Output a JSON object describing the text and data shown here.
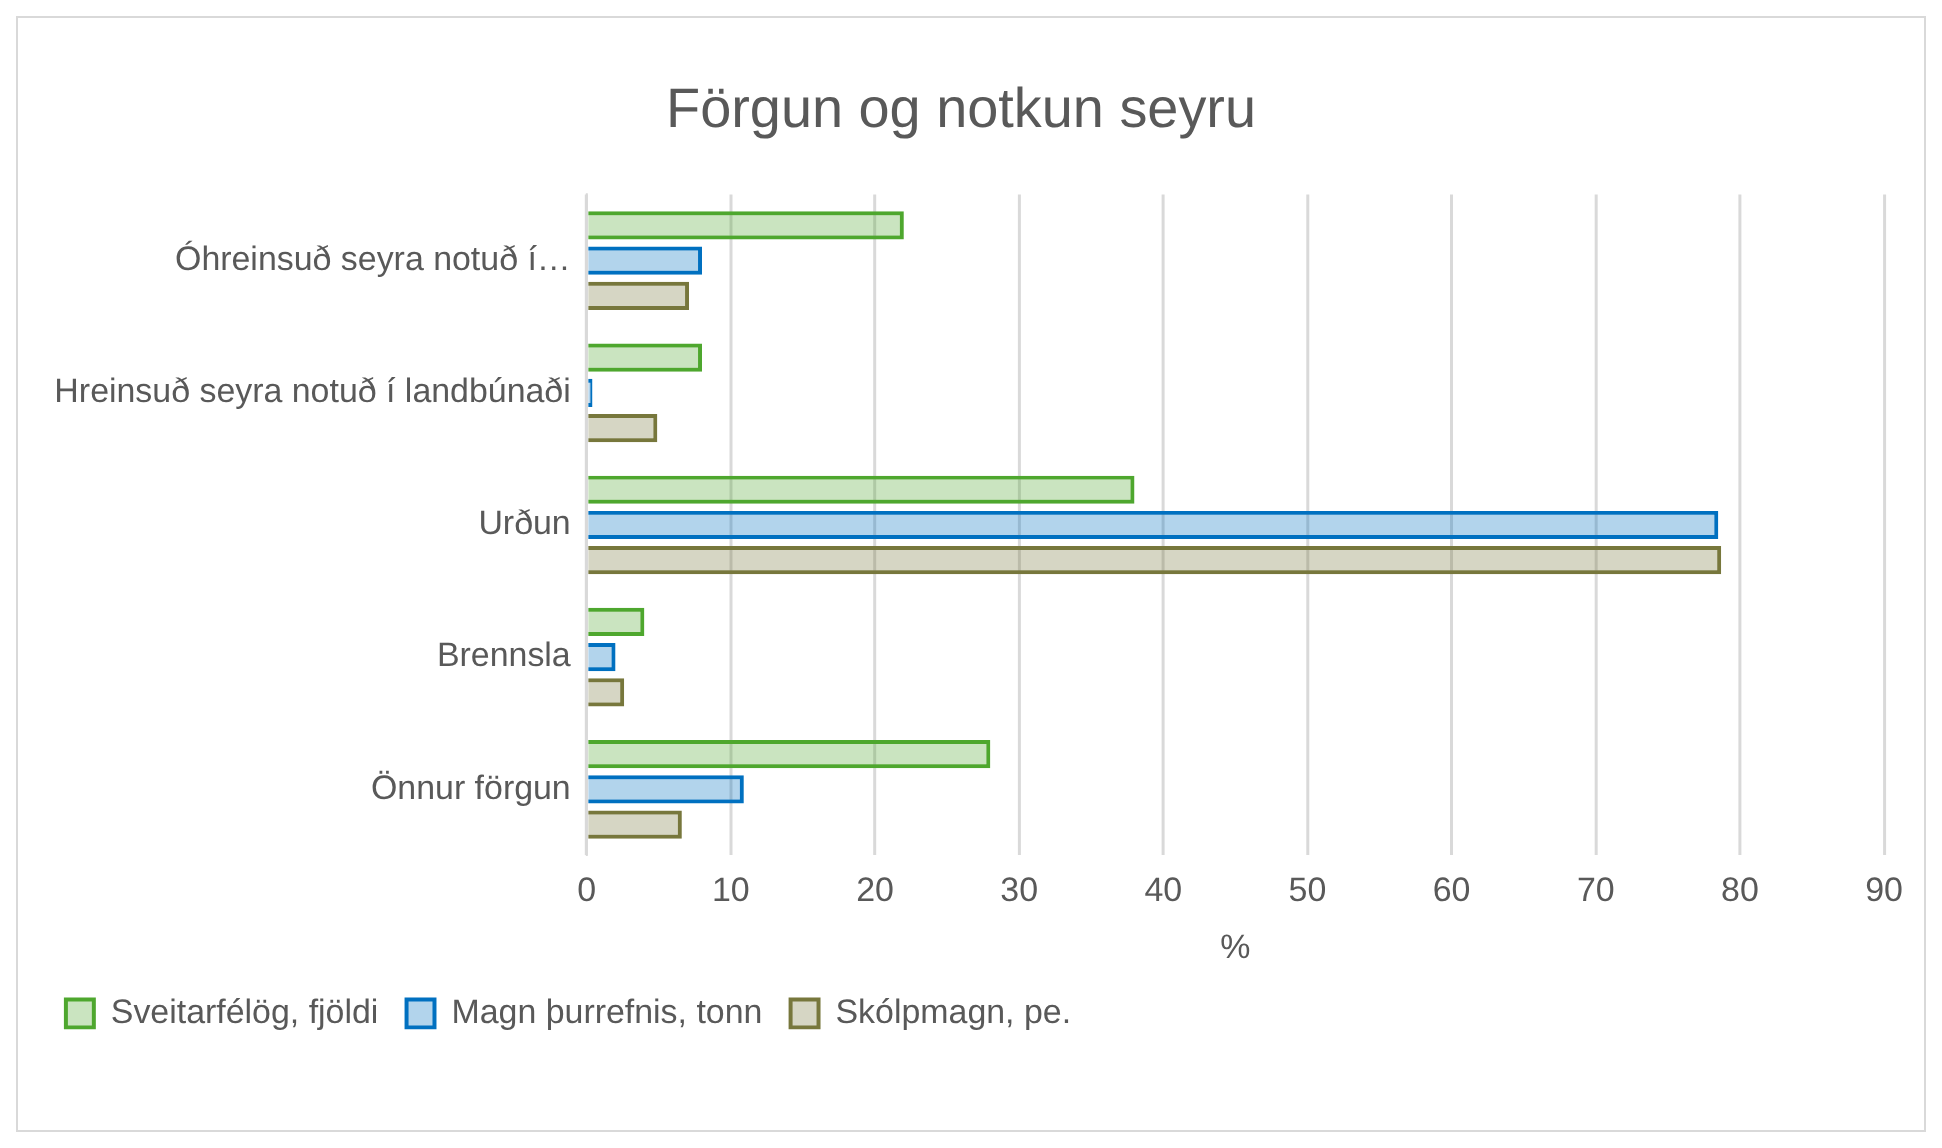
{
  "chart_data": {
    "type": "bar",
    "orientation": "horizontal",
    "title": "Förgun og notkun seyru",
    "xlabel": "%",
    "categories": [
      "Óhreinsuð seyra notuð í…",
      "Hreinsuð seyra notuð í landbúnaði",
      "Urðun",
      "Brennsla",
      "Önnur förgun"
    ],
    "series": [
      {
        "name": "Sveitarfélög, fjöldi",
        "color": "#4ea72e",
        "values": [
          22,
          8,
          38,
          4,
          28
        ]
      },
      {
        "name": "Magn þurrefnis, tonn",
        "color": "#0070c0",
        "values": [
          8,
          0.4,
          78.5,
          2,
          10.9
        ]
      },
      {
        "name": "Skólpmagn, pe.",
        "color": "#77773c",
        "values": [
          7.1,
          4.9,
          78.7,
          2.6,
          6.6
        ]
      }
    ],
    "xlim": [
      0,
      90
    ],
    "xticks": [
      0,
      10,
      20,
      30,
      40,
      50,
      60,
      70,
      80,
      90
    ],
    "grid": "x",
    "legend": "bottom"
  }
}
